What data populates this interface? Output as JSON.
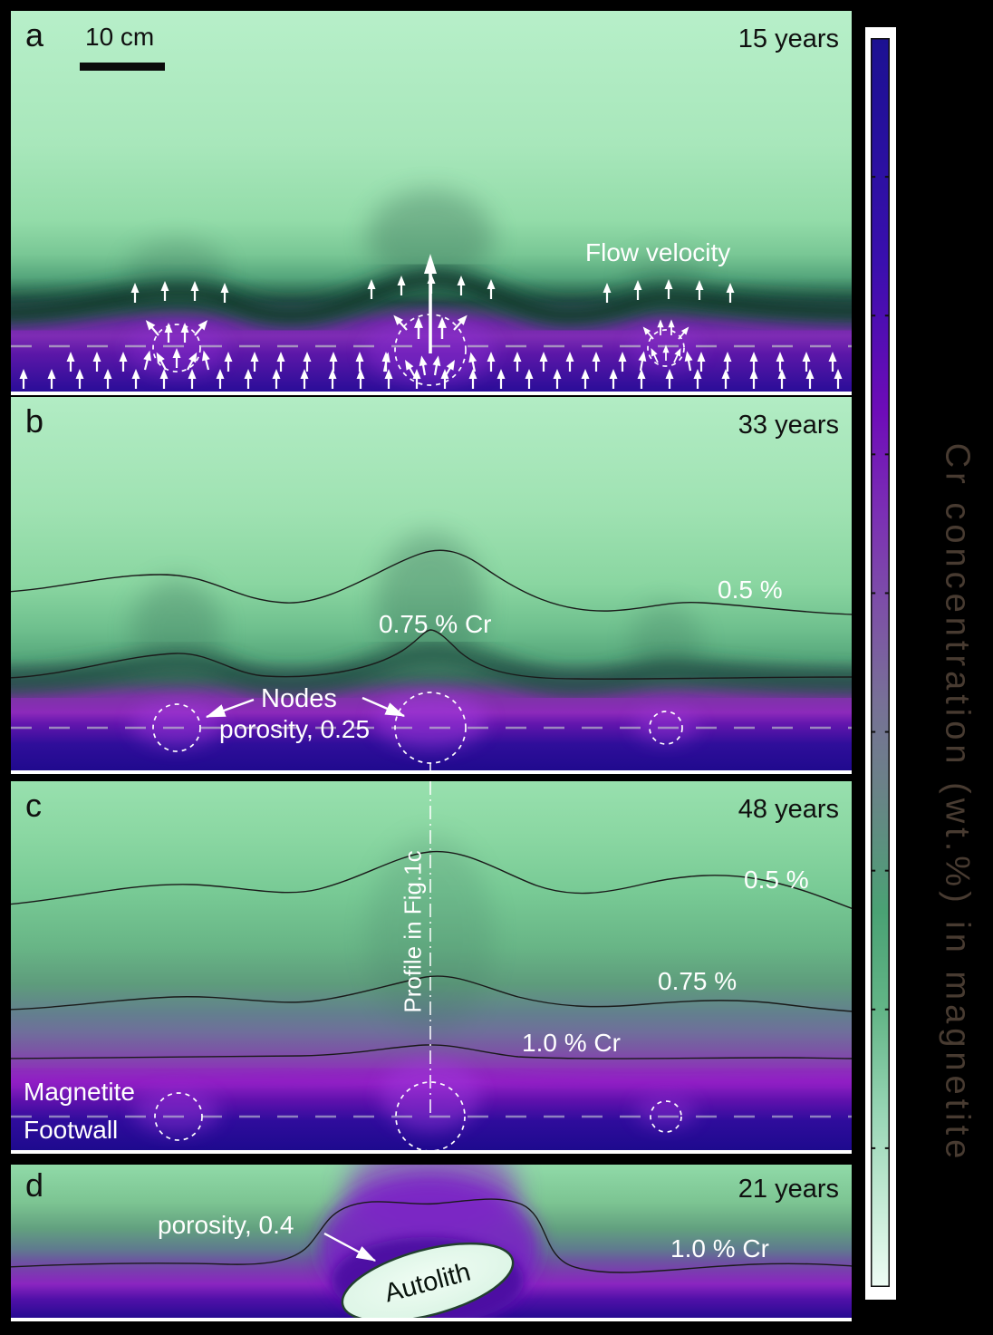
{
  "colorbar": {
    "axis_label": "Cr concentration (wt.%) in magnetite"
  },
  "panel_a": {
    "letter": "a",
    "time": "15 years",
    "scale_label": "10 cm",
    "flow_label": "Flow velocity"
  },
  "panel_b": {
    "letter": "b",
    "time": "33 years",
    "contour_05": "0.5 %",
    "contour_075": "0.75 % Cr",
    "nodes_label": "Nodes",
    "porosity_label": "porosity, 0.25"
  },
  "panel_c": {
    "letter": "c",
    "time": "48 years",
    "contour_05": "0.5 %",
    "contour_075": "0.75 %",
    "contour_10": "1.0 % Cr",
    "profile_label": "Profile in Fig.1c",
    "magnetite_label": "Magnetite",
    "footwall_label": "Footwall"
  },
  "panel_d": {
    "letter": "d",
    "time": "21 years",
    "porosity_label": "porosity, 0.4",
    "autolith_label": "Autolith",
    "contour_10": "1.0 % Cr"
  },
  "colors": {
    "cr_high_blue": "#1c1192",
    "cr_mid_purple": "#7b2fb4",
    "cr_low_green": "#eefcf4",
    "panel_top_green": "#b2ecc4",
    "contour_line": "#1a1a1a",
    "annotation_white": "#ffffff",
    "background": "#000000"
  }
}
